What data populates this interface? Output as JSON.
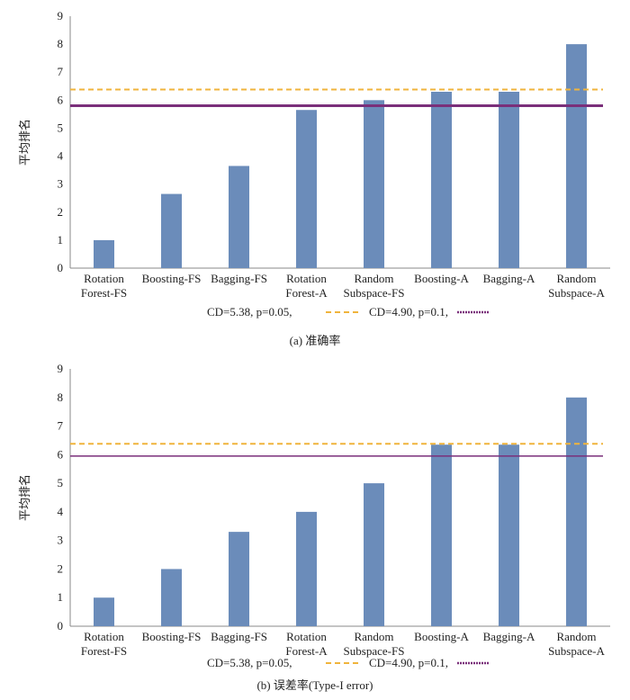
{
  "chart_data": [
    {
      "type": "bar",
      "caption": "(a) 准确率",
      "ylabel": "平均排名",
      "xlabel": "",
      "ylim": [
        0,
        9
      ],
      "yticks": [
        0,
        1,
        2,
        3,
        4,
        5,
        6,
        7,
        8,
        9
      ],
      "categories": [
        [
          "Rotation",
          "Forest-FS"
        ],
        [
          "Boosting-FS"
        ],
        [
          "Bagging-FS"
        ],
        [
          "Rotation",
          "Forest-A"
        ],
        [
          "Random",
          "Subspace-FS"
        ],
        [
          "Boosting-A"
        ],
        [
          "Bagging-A"
        ],
        [
          "Random",
          "Subspace-A"
        ]
      ],
      "values": [
        1.0,
        2.65,
        3.65,
        5.65,
        6.0,
        6.3,
        6.3,
        8.0
      ],
      "bar_color": "#6b8cba",
      "grid": false,
      "legend_position": "bottom",
      "reference_lines": [
        {
          "label": "CD=5.38, p=0.05,",
          "value": 6.38,
          "style": "dashed",
          "color": "#f0b43c"
        },
        {
          "label": "CD=4.90, p=0.1,",
          "value": 5.8,
          "style": "solid",
          "color": "#7a2f7a"
        }
      ]
    },
    {
      "type": "bar",
      "caption": "(b) 误差率(Type-I error)",
      "ylabel": "平均排名",
      "xlabel": "",
      "ylim": [
        0,
        9
      ],
      "yticks": [
        0,
        1,
        2,
        3,
        4,
        5,
        6,
        7,
        8,
        9
      ],
      "categories": [
        [
          "Rotation",
          "Forest-FS"
        ],
        [
          "Boosting-FS"
        ],
        [
          "Bagging-FS"
        ],
        [
          "Rotation",
          "Forest-A"
        ],
        [
          "Random",
          "Subspace-FS"
        ],
        [
          "Boosting-A"
        ],
        [
          "Bagging-A"
        ],
        [
          "Random",
          "Subspace-A"
        ]
      ],
      "values": [
        1.0,
        2.0,
        3.3,
        4.0,
        5.0,
        6.35,
        6.35,
        8.0
      ],
      "bar_color": "#6b8cba",
      "grid": false,
      "legend_position": "bottom",
      "reference_lines": [
        {
          "label": "CD=5.38, p=0.05,",
          "value": 6.38,
          "style": "dashed",
          "color": "#f0b43c"
        },
        {
          "label": "CD=4.90, p=0.1,",
          "value": 5.95,
          "style": "solid",
          "color": "#7a2f7a"
        }
      ]
    }
  ]
}
